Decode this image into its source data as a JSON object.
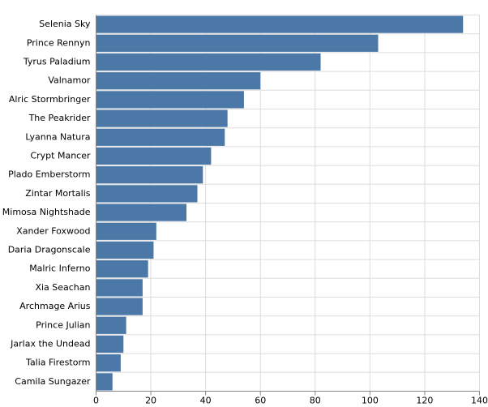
{
  "chart_data": {
    "type": "hbar",
    "categories": [
      "Selenia Sky",
      "Prince Rennyn",
      "Tyrus Paladium",
      "Valnamor",
      "Alric Stormbringer",
      "The Peakrider",
      "Lyanna Natura",
      "Crypt Mancer",
      "Plado Emberstorm",
      "Zintar Mortalis",
      "Mimosa Nightshade",
      "Xander Foxwood",
      "Daria Dragonscale",
      "Malric Inferno",
      "Xia Seachan",
      "Archmage Arius",
      "Prince Julian",
      "Jarlax the Undead",
      "Talia Firestorm",
      "Camila Sungazer"
    ],
    "values": [
      134,
      103,
      82,
      60,
      54,
      48,
      47,
      42,
      39,
      37,
      33,
      22,
      21,
      19,
      17,
      17,
      11,
      10,
      9,
      6
    ],
    "color": "#4c78a8",
    "xlim": [
      0,
      140
    ],
    "xticks": [
      0,
      20,
      40,
      60,
      80,
      100,
      120,
      140
    ],
    "grid": true
  }
}
